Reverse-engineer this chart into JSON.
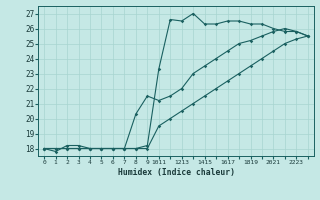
{
  "xlabel": "Humidex (Indice chaleur)",
  "bg_color": "#c5e8e5",
  "grid_color": "#a8d5d0",
  "line_color": "#1a6060",
  "xlim": [
    -0.5,
    23.5
  ],
  "ylim": [
    17.5,
    27.5
  ],
  "xtick_labels": [
    "0",
    "1",
    "2",
    "3",
    "4",
    "5",
    "6",
    "7",
    "8",
    "9",
    "1011",
    "1213",
    "1415",
    "1617",
    "1819",
    "2021",
    "2223"
  ],
  "yticks": [
    18,
    19,
    20,
    21,
    22,
    23,
    24,
    25,
    26,
    27
  ],
  "line1_x": [
    0,
    1,
    2,
    3,
    4,
    5,
    6,
    7,
    8,
    9,
    10,
    11,
    12,
    13,
    14,
    15,
    16,
    17,
    18,
    19,
    20,
    21,
    22,
    23
  ],
  "line1_y": [
    18.0,
    17.8,
    18.2,
    18.2,
    18.0,
    18.0,
    18.0,
    18.0,
    18.0,
    18.2,
    23.3,
    26.6,
    26.5,
    27.0,
    26.3,
    26.3,
    26.5,
    26.5,
    26.3,
    26.3,
    26.0,
    25.8,
    25.8,
    25.5
  ],
  "line2_x": [
    0,
    1,
    2,
    3,
    4,
    5,
    6,
    7,
    8,
    9,
    10,
    11,
    12,
    13,
    14,
    15,
    16,
    17,
    18,
    19,
    20,
    21,
    22,
    23
  ],
  "line2_y": [
    18.0,
    18.0,
    18.0,
    18.0,
    18.0,
    18.0,
    18.0,
    18.0,
    20.3,
    21.5,
    21.2,
    21.5,
    22.0,
    23.0,
    23.5,
    24.0,
    24.5,
    25.0,
    25.2,
    25.5,
    25.8,
    26.0,
    25.8,
    25.5
  ],
  "line3_x": [
    0,
    1,
    2,
    3,
    4,
    5,
    6,
    7,
    8,
    9,
    10,
    11,
    12,
    13,
    14,
    15,
    16,
    17,
    18,
    19,
    20,
    21,
    22,
    23
  ],
  "line3_y": [
    18.0,
    18.0,
    18.0,
    18.0,
    18.0,
    18.0,
    18.0,
    18.0,
    18.0,
    18.0,
    19.5,
    20.0,
    20.5,
    21.0,
    21.5,
    22.0,
    22.5,
    23.0,
    23.5,
    24.0,
    24.5,
    25.0,
    25.3,
    25.5
  ]
}
